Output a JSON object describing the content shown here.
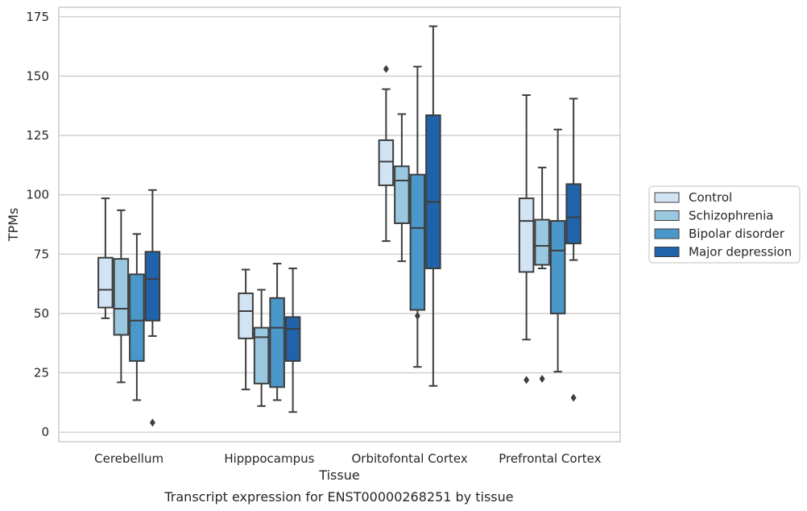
{
  "caption": "Transcript expression for ENST00000268251 by tissue",
  "chart_data": {
    "type": "boxplot",
    "xlabel": "Tissue",
    "ylabel": "TPMs",
    "ylim": [
      -4,
      179
    ],
    "yticks": [
      0,
      25,
      50,
      75,
      100,
      125,
      150,
      175
    ],
    "grid": "horizontal",
    "legend_position": "right",
    "categories": [
      "Cerebellum",
      "Hipppocampus",
      "Orbitofontal Cortex",
      "Prefrontal Cortex"
    ],
    "series": [
      {
        "name": "Control",
        "color": "#d2e3f3",
        "boxes": [
          {
            "whisker_low": 48,
            "q1": 52.5,
            "median": 60,
            "q3": 73.5,
            "whisker_high": 98.5,
            "outliers": []
          },
          {
            "whisker_low": 18,
            "q1": 39.5,
            "median": 51,
            "q3": 58.5,
            "whisker_high": 68.5,
            "outliers": []
          },
          {
            "whisker_low": 80.5,
            "q1": 104,
            "median": 114,
            "q3": 123,
            "whisker_high": 144.5,
            "outliers": [
              153
            ]
          },
          {
            "whisker_low": 39,
            "q1": 67.5,
            "median": 89,
            "q3": 98.5,
            "whisker_high": 142,
            "outliers": [
              22
            ]
          }
        ]
      },
      {
        "name": "Schizophrenia",
        "color": "#9ac8e0",
        "boxes": [
          {
            "whisker_low": 21,
            "q1": 41,
            "median": 52,
            "q3": 73,
            "whisker_high": 93.5,
            "outliers": []
          },
          {
            "whisker_low": 11,
            "q1": 20.5,
            "median": 40,
            "q3": 44,
            "whisker_high": 60,
            "outliers": []
          },
          {
            "whisker_low": 72,
            "q1": 88,
            "median": 106,
            "q3": 112,
            "whisker_high": 134,
            "outliers": []
          },
          {
            "whisker_low": 69,
            "q1": 70.5,
            "median": 78.5,
            "q3": 89.5,
            "whisker_high": 111.5,
            "outliers": [
              22.5
            ]
          }
        ]
      },
      {
        "name": "Bipolar disorder",
        "color": "#4a98c9",
        "boxes": [
          {
            "whisker_low": 13.5,
            "q1": 30,
            "median": 47,
            "q3": 66.5,
            "whisker_high": 83.5,
            "outliers": []
          },
          {
            "whisker_low": 13.5,
            "q1": 19,
            "median": 44,
            "q3": 56.5,
            "whisker_high": 71,
            "outliers": []
          },
          {
            "whisker_low": 27.5,
            "q1": 51.5,
            "median": 86,
            "q3": 108.5,
            "whisker_high": 154,
            "outliers": [
              49
            ]
          },
          {
            "whisker_low": 25.5,
            "q1": 50,
            "median": 76.5,
            "q3": 89,
            "whisker_high": 127.5,
            "outliers": []
          }
        ]
      },
      {
        "name": "Major depression",
        "color": "#2163aa",
        "boxes": [
          {
            "whisker_low": 40.5,
            "q1": 47,
            "median": 64.5,
            "q3": 76,
            "whisker_high": 102,
            "outliers": [
              4
            ]
          },
          {
            "whisker_low": 8.5,
            "q1": 30,
            "median": 43.5,
            "q3": 48.5,
            "whisker_high": 69,
            "outliers": []
          },
          {
            "whisker_low": 19.5,
            "q1": 69,
            "median": 97,
            "q3": 133.5,
            "whisker_high": 171,
            "outliers": []
          },
          {
            "whisker_low": 72.5,
            "q1": 79.5,
            "median": 90.5,
            "q3": 104.5,
            "whisker_high": 140.5,
            "outliers": [
              14.5
            ]
          }
        ]
      }
    ]
  }
}
